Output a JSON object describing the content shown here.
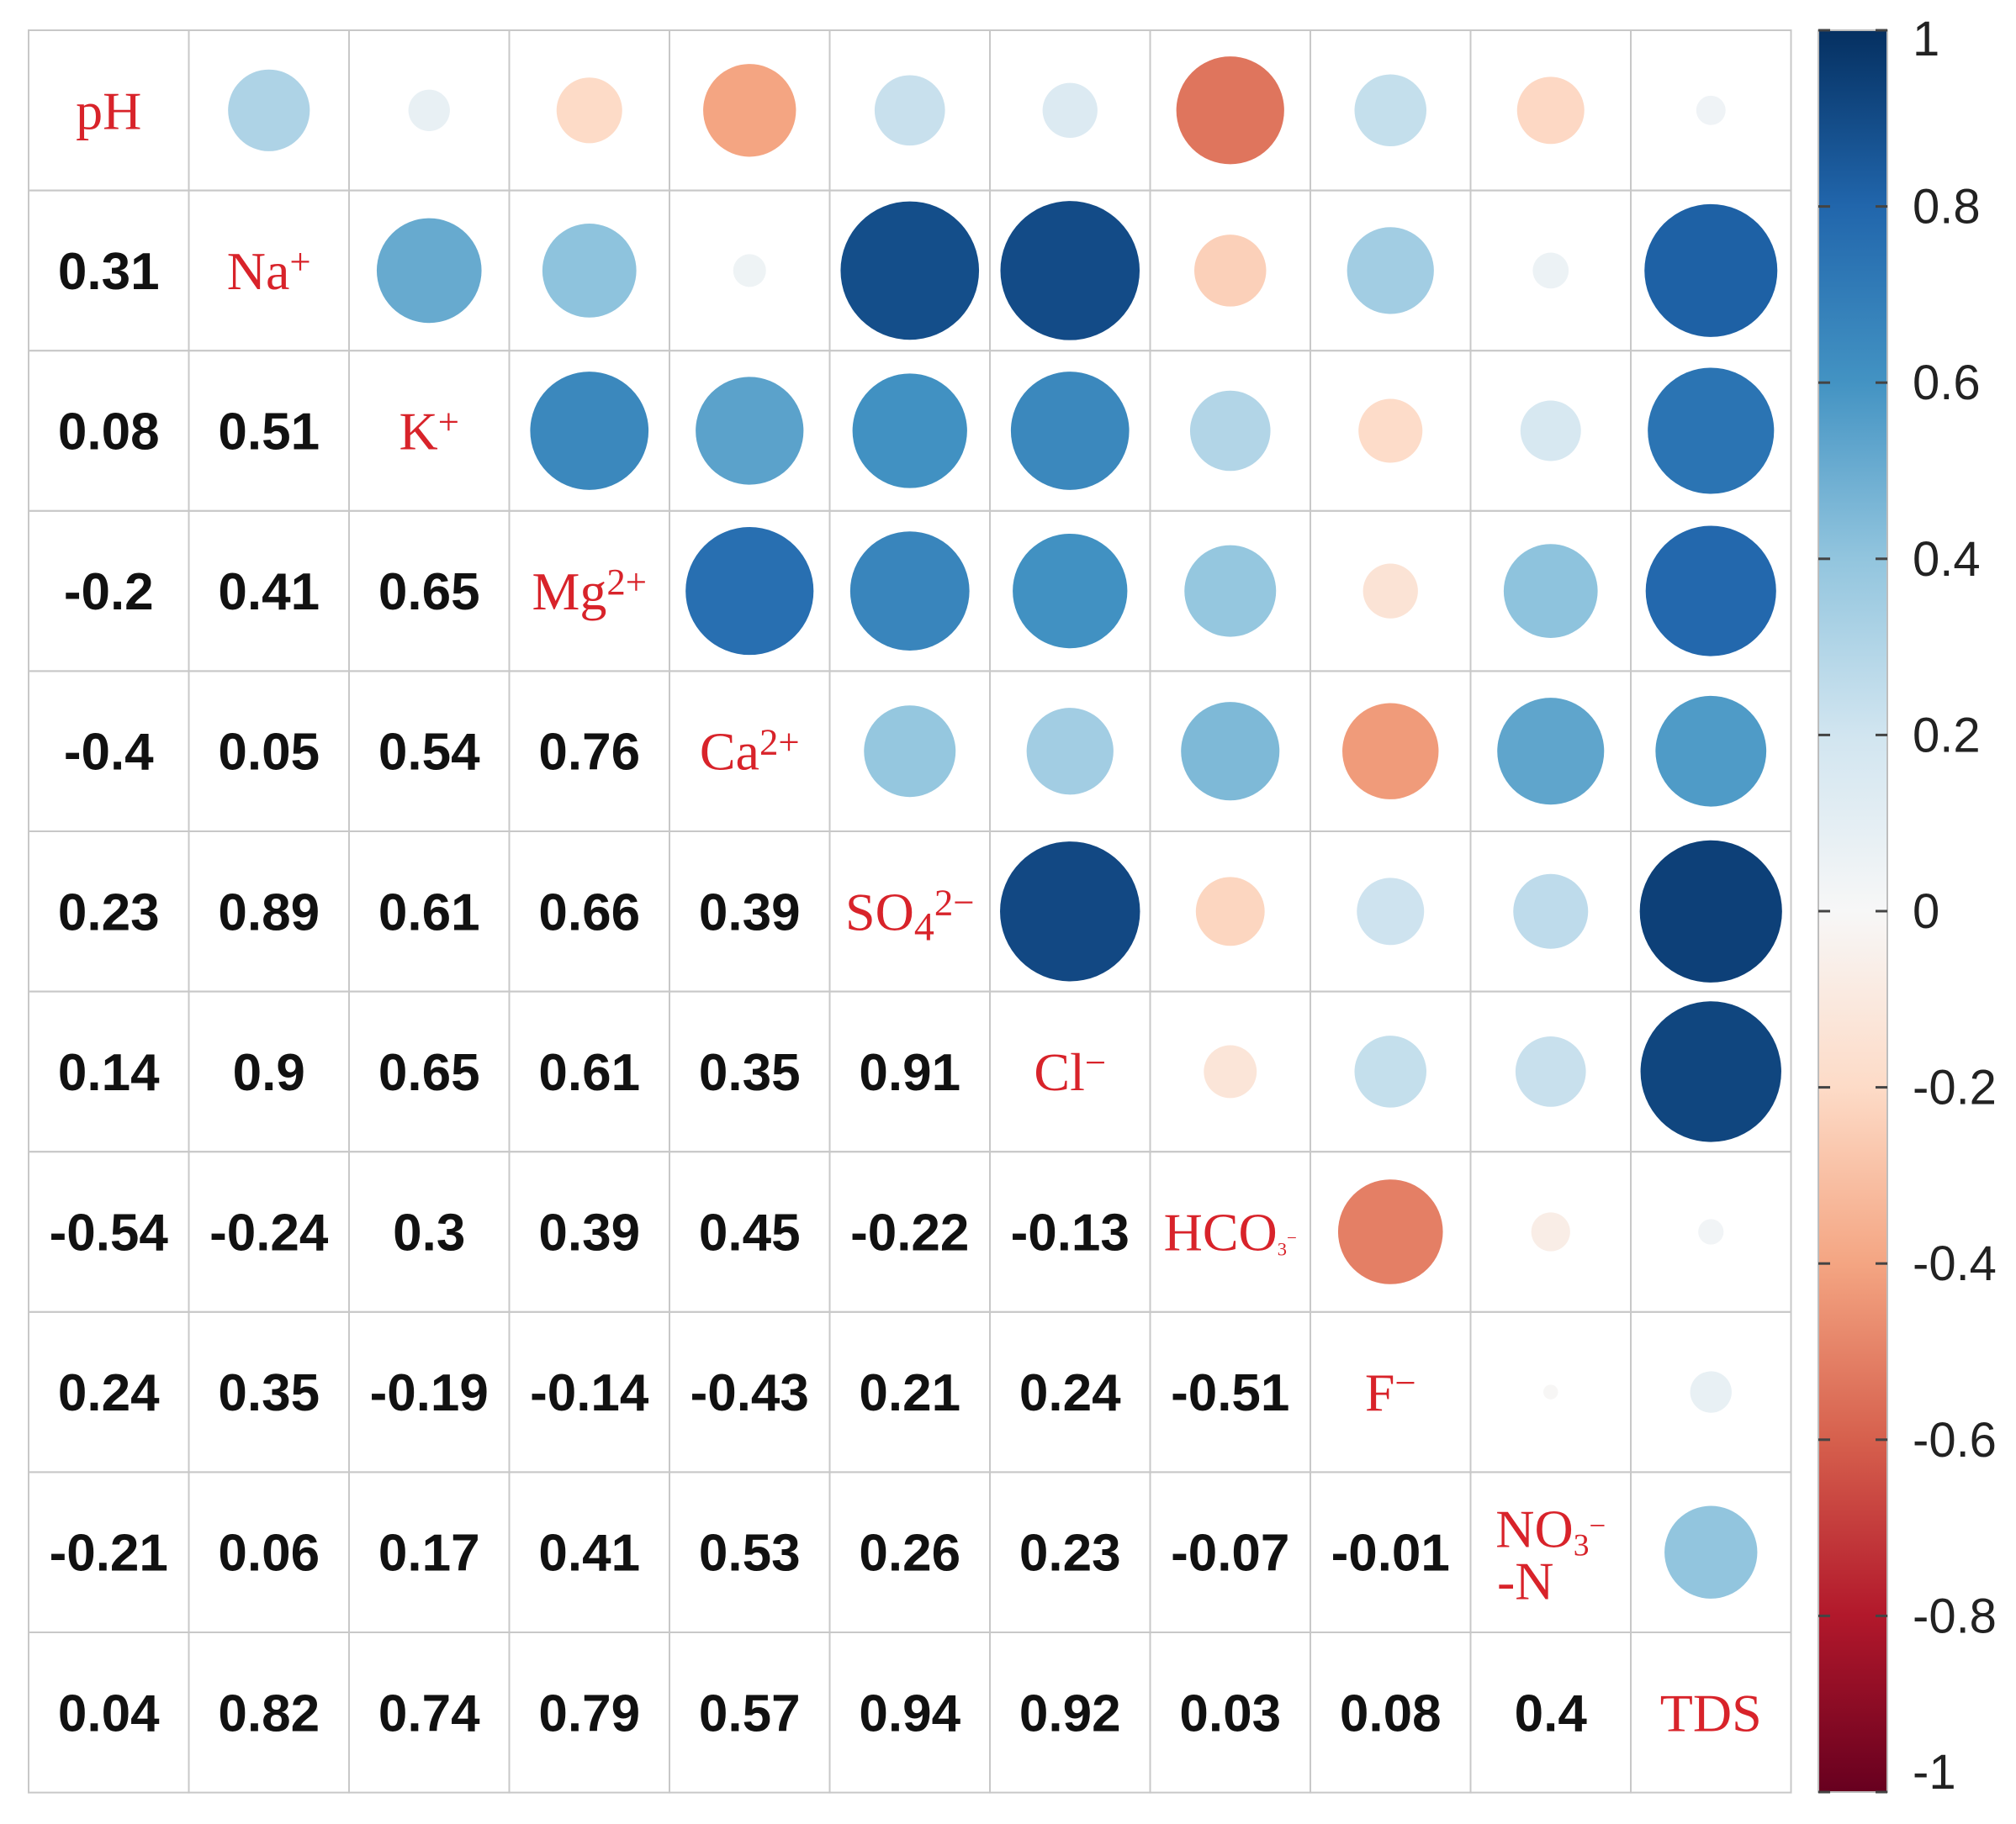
{
  "chart_data": {
    "type": "heatmap",
    "variables": [
      {
        "base": "pH",
        "sup": "",
        "sub": ""
      },
      {
        "base": "Na",
        "sup": "+",
        "sub": ""
      },
      {
        "base": "K",
        "sup": "+",
        "sub": ""
      },
      {
        "base": "Mg",
        "sup": "2+",
        "sub": ""
      },
      {
        "base": "Ca",
        "sup": "2+",
        "sub": ""
      },
      {
        "base": "SO",
        "sub": "4",
        "sup": "2−"
      },
      {
        "base": "Cl",
        "sup": "−",
        "sub": ""
      },
      {
        "base": "HCO",
        "sub": "3",
        "sup": "−"
      },
      {
        "base": "F",
        "sup": "−",
        "sub": ""
      },
      {
        "base": "NO",
        "sub": "3",
        "sup": "−",
        "line2": "-N"
      },
      {
        "base": "TDS",
        "sup": "",
        "sub": ""
      }
    ],
    "matrix": [
      [
        1,
        0.31,
        0.08,
        -0.2,
        -0.4,
        0.23,
        0.14,
        -0.54,
        0.24,
        -0.21,
        0.04
      ],
      [
        0.31,
        1,
        0.51,
        0.41,
        0.05,
        0.89,
        0.9,
        -0.24,
        0.35,
        0.06,
        0.82
      ],
      [
        0.08,
        0.51,
        1,
        0.65,
        0.54,
        0.61,
        0.65,
        0.3,
        -0.19,
        0.17,
        0.74
      ],
      [
        -0.2,
        0.41,
        0.65,
        1,
        0.76,
        0.66,
        0.61,
        0.39,
        -0.14,
        0.41,
        0.79
      ],
      [
        -0.4,
        0.05,
        0.54,
        0.76,
        1,
        0.39,
        0.35,
        0.45,
        -0.43,
        0.53,
        0.57
      ],
      [
        0.23,
        0.89,
        0.61,
        0.66,
        0.39,
        1,
        0.91,
        -0.22,
        0.21,
        0.26,
        0.94
      ],
      [
        0.14,
        0.9,
        0.65,
        0.61,
        0.35,
        0.91,
        1,
        -0.13,
        0.24,
        0.23,
        0.92
      ],
      [
        -0.54,
        -0.24,
        0.3,
        0.39,
        0.45,
        -0.22,
        -0.13,
        1,
        -0.51,
        -0.07,
        0.03
      ],
      [
        0.24,
        0.35,
        -0.19,
        -0.14,
        -0.43,
        0.21,
        0.24,
        -0.51,
        1,
        -0.01,
        0.08
      ],
      [
        -0.21,
        0.06,
        0.17,
        0.41,
        0.53,
        0.26,
        0.23,
        -0.07,
        -0.01,
        1,
        0.4
      ],
      [
        0.04,
        0.82,
        0.74,
        0.79,
        0.57,
        0.94,
        0.92,
        0.03,
        0.08,
        0.4,
        1
      ]
    ],
    "lower_triangle": "numbers",
    "upper_triangle": "circles",
    "colorbar": {
      "min": -1,
      "max": 1,
      "ticks": [
        "1",
        "0.8",
        "0.6",
        "0.4",
        "0.2",
        "0",
        "-0.2",
        "-0.4",
        "-0.6",
        "-0.8",
        "-1"
      ],
      "tick_values": [
        1,
        0.8,
        0.6,
        0.4,
        0.2,
        0,
        -0.2,
        -0.4,
        -0.6,
        -0.8,
        -1
      ],
      "colors": [
        "#67001f",
        "#b2182b",
        "#d6604d",
        "#f4a582",
        "#fddbc7",
        "#f7f7f7",
        "#d1e5f0",
        "#92c5de",
        "#4393c3",
        "#2166ac",
        "#053061"
      ],
      "placement": "right"
    }
  }
}
